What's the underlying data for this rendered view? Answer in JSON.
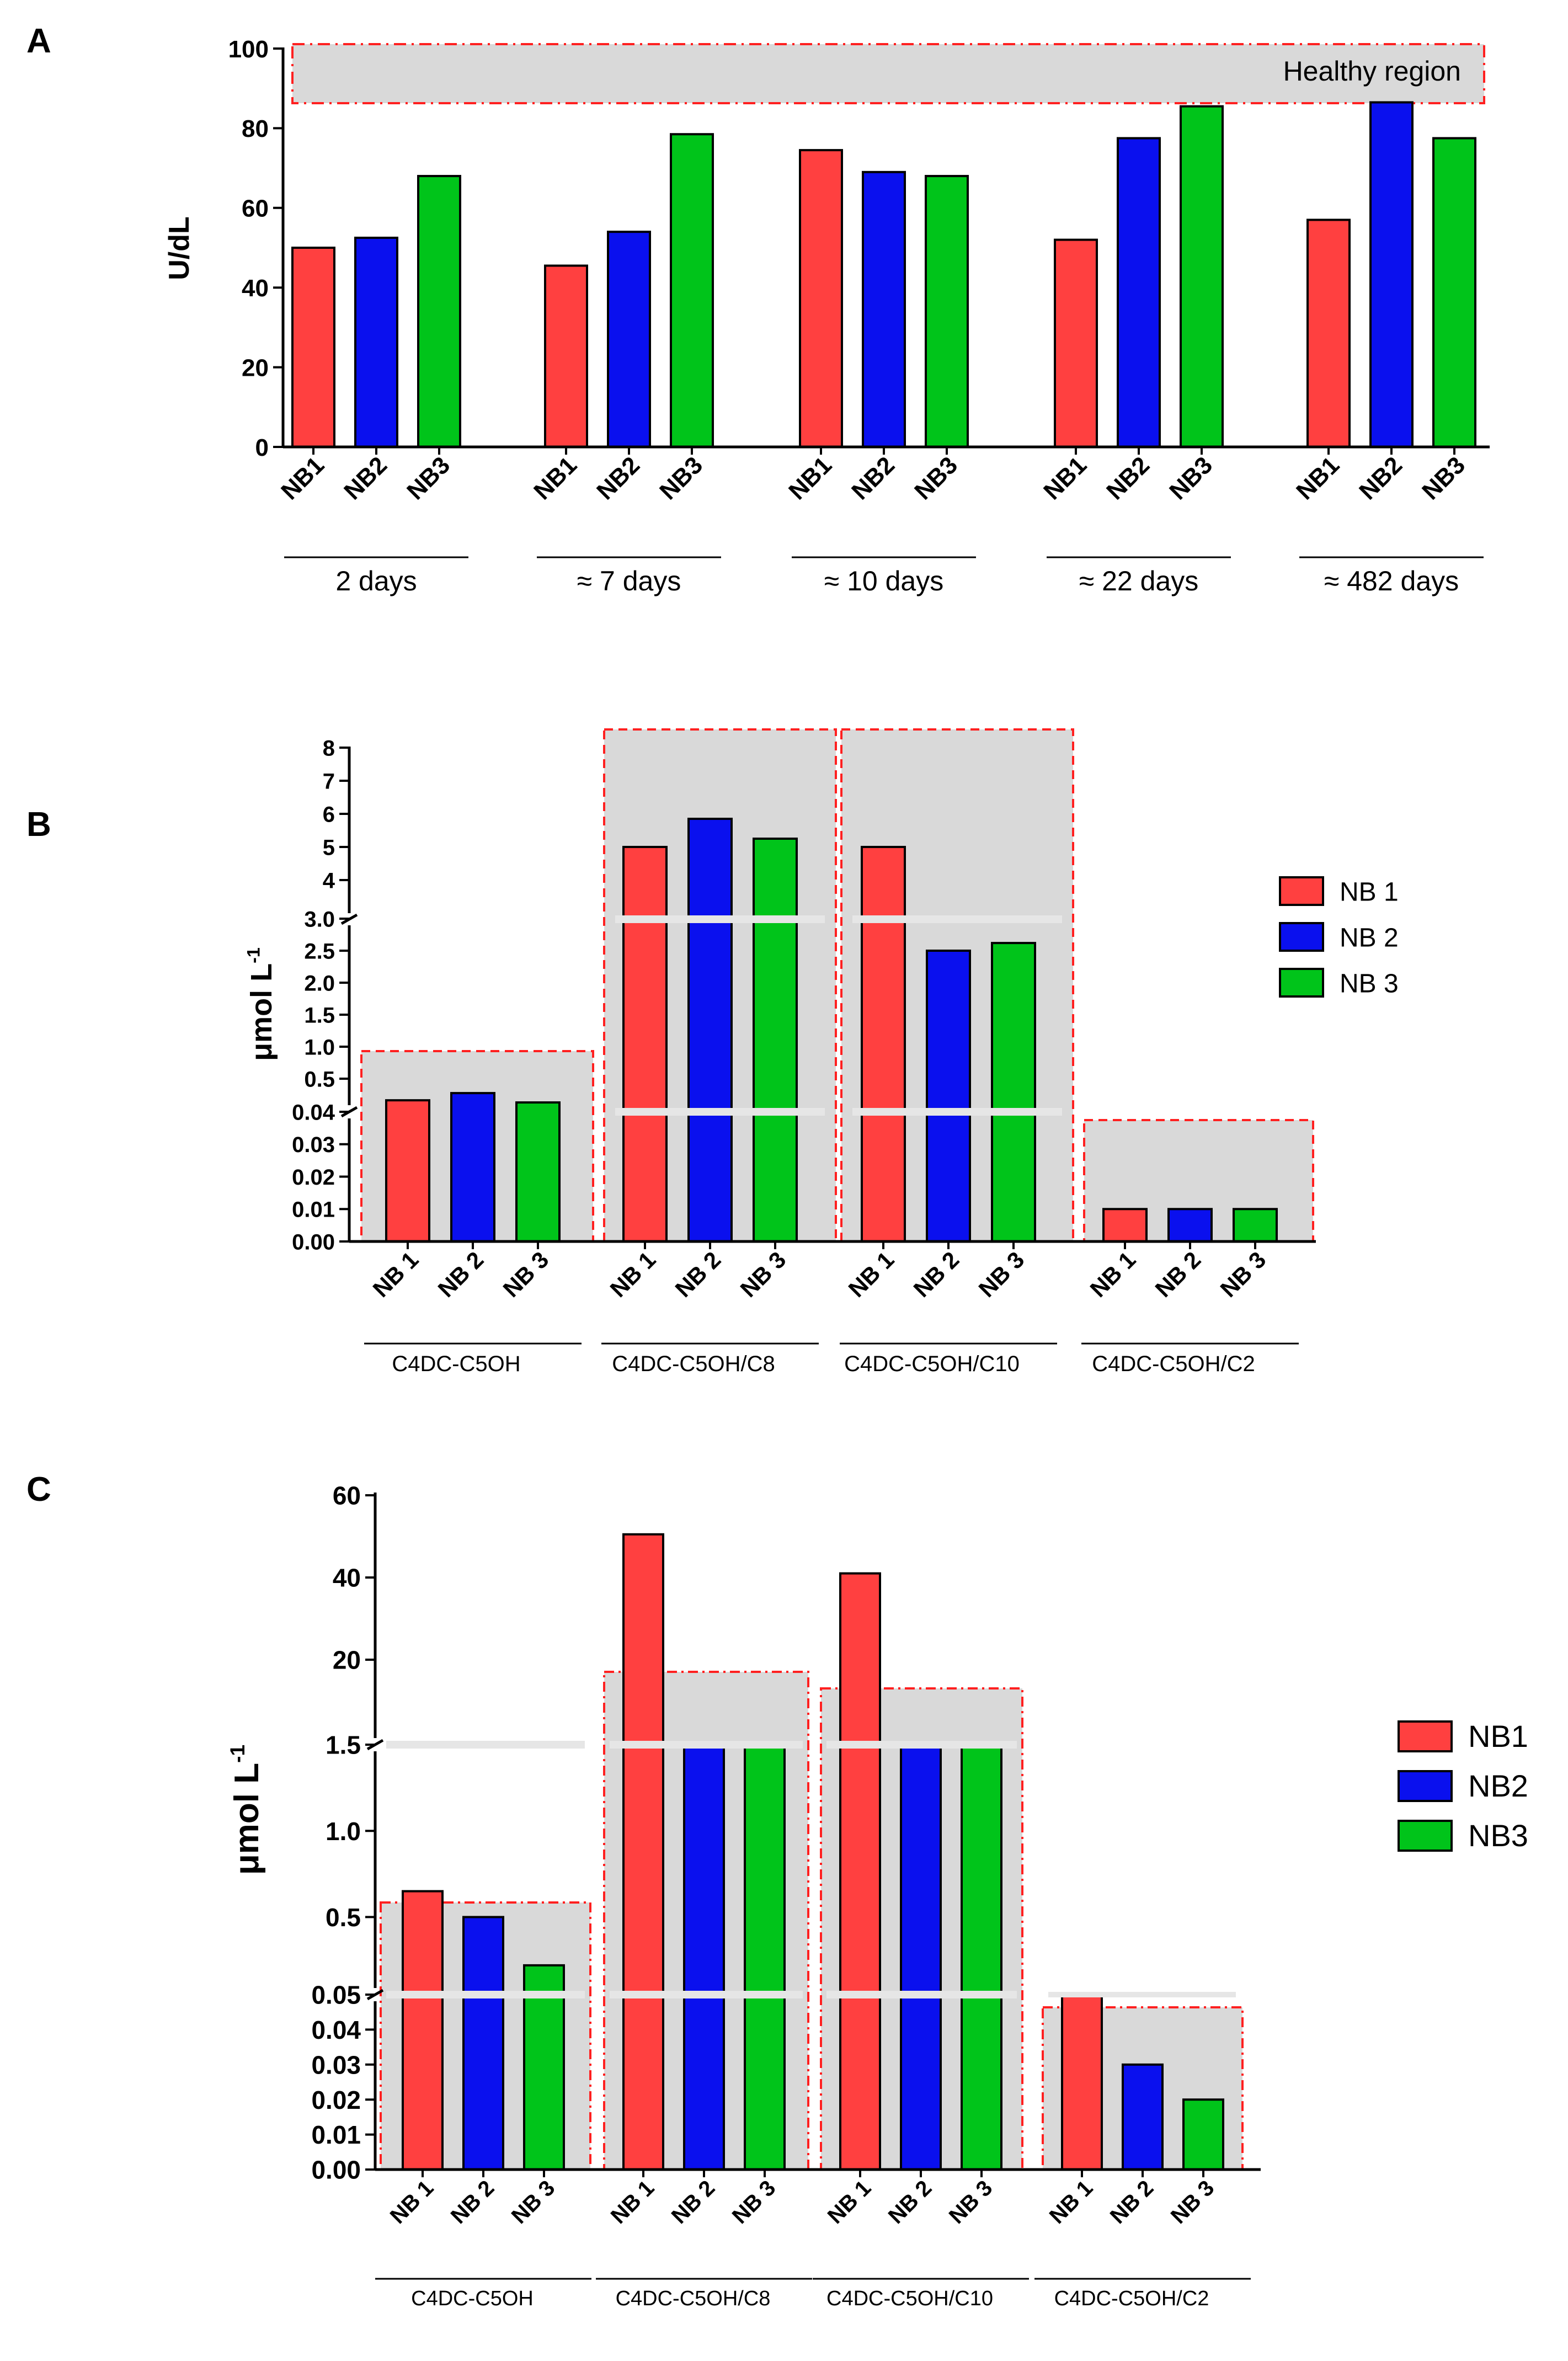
{
  "colors": {
    "nb1": "#ff4040",
    "nb2": "#0a10ee",
    "nb3": "#00c41a",
    "region_fill": "#d9d9d9",
    "region_border": "#ff2020",
    "break_line": "#e6e6e6"
  },
  "chart_data": [
    {
      "type": "bar",
      "panel_label": "A",
      "ylabel": "U/dL",
      "ylim": [
        0,
        100
      ],
      "yticks": [
        "0",
        "20",
        "40",
        "60",
        "80",
        "100"
      ],
      "annotation": "Healthy region",
      "healthy_region": [
        87,
        100
      ],
      "groups": [
        {
          "label": "2 days",
          "categories": [
            "NB1",
            "NB2",
            "NB3"
          ],
          "values": [
            50,
            52.5,
            68
          ]
        },
        {
          "label": "≈ 7 days",
          "categories": [
            "NB1",
            "NB2",
            "NB3"
          ],
          "values": [
            45.5,
            54,
            78.5
          ]
        },
        {
          "label": "≈ 10 days",
          "categories": [
            "NB1",
            "NB2",
            "NB3"
          ],
          "values": [
            74.5,
            69,
            68
          ]
        },
        {
          "label": "≈ 22 days",
          "categories": [
            "NB1",
            "NB2",
            "NB3"
          ],
          "values": [
            52,
            77.5,
            85.5
          ]
        },
        {
          "label": "≈ 482 days",
          "categories": [
            "NB1",
            "NB2",
            "NB3"
          ],
          "values": [
            57,
            86.5,
            77.5
          ]
        }
      ]
    },
    {
      "type": "bar",
      "panel_label": "B",
      "ylabel": "μmol L",
      "ylabel_sup": "-1",
      "y_segments": [
        {
          "range": [
            0,
            0.04
          ],
          "ticks": [
            "0.00",
            "0.01",
            "0.02",
            "0.03",
            "0.04"
          ]
        },
        {
          "range": [
            0.5,
            3.0
          ],
          "ticks": [
            "0.5",
            "1.0",
            "1.5",
            "2.0",
            "2.5",
            "3.0"
          ]
        },
        {
          "range": [
            4,
            8
          ],
          "ticks": [
            "4",
            "5",
            "6",
            "7",
            "8"
          ]
        }
      ],
      "legend": [
        "NB 1",
        "NB 2",
        "NB 3"
      ],
      "groups": [
        {
          "label": "C4DC-C5OH",
          "categories": [
            "NB 1",
            "NB 2",
            "NB 3"
          ],
          "values": [
            0.2,
            0.3,
            0.17
          ]
        },
        {
          "label": "C4DC-C5OH/C8",
          "categories": [
            "NB 1",
            "NB 2",
            "NB 3"
          ],
          "values": [
            5.0,
            5.85,
            5.25
          ]
        },
        {
          "label": "C4DC-C5OH/C10",
          "categories": [
            "NB 1",
            "NB 2",
            "NB 3"
          ],
          "values": [
            5.0,
            2.5,
            2.62
          ]
        },
        {
          "label": "C4DC-C5OH/C2",
          "categories": [
            "NB 1",
            "NB 2",
            "NB 3"
          ],
          "values": [
            0.01,
            0.01,
            0.01
          ]
        }
      ]
    },
    {
      "type": "bar",
      "panel_label": "C",
      "ylabel": "μmol L",
      "ylabel_sup": "-1",
      "y_segments": [
        {
          "range": [
            0,
            0.05
          ],
          "ticks": [
            "0.00",
            "0.01",
            "0.02",
            "0.03",
            "0.04",
            "0.05"
          ]
        },
        {
          "range": [
            0.05,
            1.5
          ],
          "ticks": [
            "0.5",
            "1.0",
            "1.5"
          ]
        },
        {
          "range": [
            1.5,
            60
          ],
          "ticks": [
            "20",
            "40",
            "60"
          ]
        }
      ],
      "legend": [
        "NB1",
        "NB2",
        "NB3"
      ],
      "groups": [
        {
          "label": "C4DC-C5OH",
          "categories": [
            "NB 1",
            "NB 2",
            "NB 3"
          ],
          "values": [
            0.65,
            0.5,
            0.22
          ]
        },
        {
          "label": "C4DC-C5OH/C8",
          "categories": [
            "NB 1",
            "NB 2",
            "NB 3"
          ],
          "values": [
            50.5,
            1.55,
            1.55
          ]
        },
        {
          "label": "C4DC-C5OH/C10",
          "categories": [
            "NB 1",
            "NB 2",
            "NB 3"
          ],
          "values": [
            41,
            1.53,
            1.55
          ]
        },
        {
          "label": "C4DC-C5OH/C2",
          "categories": [
            "NB 1",
            "NB 2",
            "NB 3"
          ],
          "values": [
            0.052,
            0.03,
            0.02
          ]
        }
      ]
    }
  ]
}
